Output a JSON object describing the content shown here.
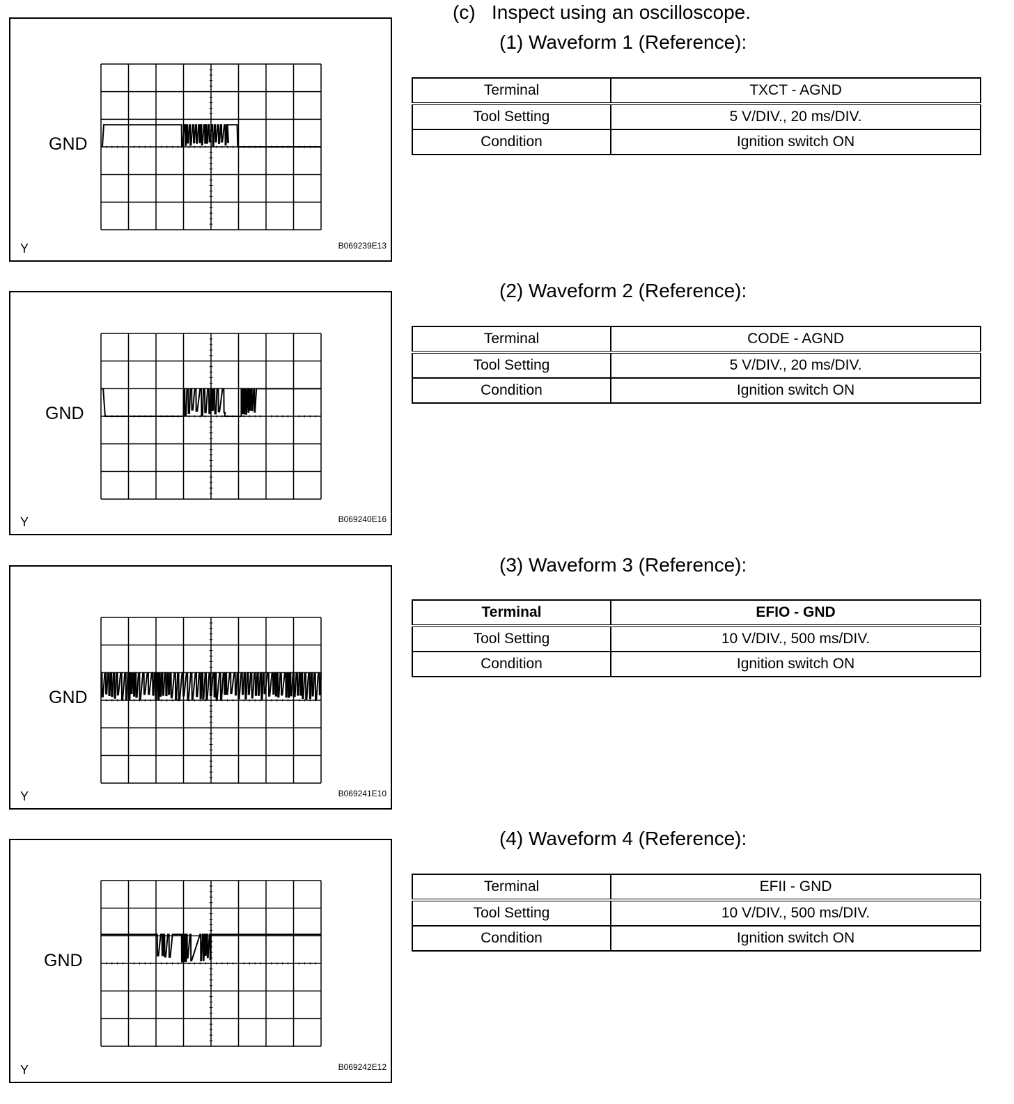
{
  "heading": {
    "marker": "(c)",
    "text": "Inspect using an oscilloscope."
  },
  "waveforms": [
    {
      "title": "(1) Waveform 1 (Reference):",
      "gnd_label": "GND",
      "y_label": "Y",
      "figure_code": "B069239E13",
      "rows": [
        [
          "Terminal",
          "TXCT - AGND"
        ],
        [
          "Tool Setting",
          "5 V/DIV., 20 ms/DIV."
        ],
        [
          "Condition",
          "Ignition switch ON"
        ]
      ]
    },
    {
      "title": "(2) Waveform 2 (Reference):",
      "gnd_label": "GND",
      "y_label": "Y",
      "figure_code": "B069240E16",
      "rows": [
        [
          "Terminal",
          "CODE - AGND"
        ],
        [
          "Tool Setting",
          "5 V/DIV., 20 ms/DIV."
        ],
        [
          "Condition",
          "Ignition switch ON"
        ]
      ]
    },
    {
      "title": "(3) Waveform 3 (Reference):",
      "gnd_label": "GND",
      "y_label": "Y",
      "figure_code": "B069241E10",
      "rows": [
        [
          "Terminal",
          "EFIO - GND"
        ],
        [
          "Tool Setting",
          "10 V/DIV., 500 ms/DIV."
        ],
        [
          "Condition",
          "Ignition switch ON"
        ]
      ]
    },
    {
      "title": "(4) Waveform 4 (Reference):",
      "gnd_label": "GND",
      "y_label": "Y",
      "figure_code": "B069242E12",
      "rows": [
        [
          "Terminal",
          "EFII - GND"
        ],
        [
          "Tool Setting",
          "10 V/DIV., 500 ms/DIV."
        ],
        [
          "Condition",
          "Ignition switch ON"
        ]
      ]
    }
  ]
}
